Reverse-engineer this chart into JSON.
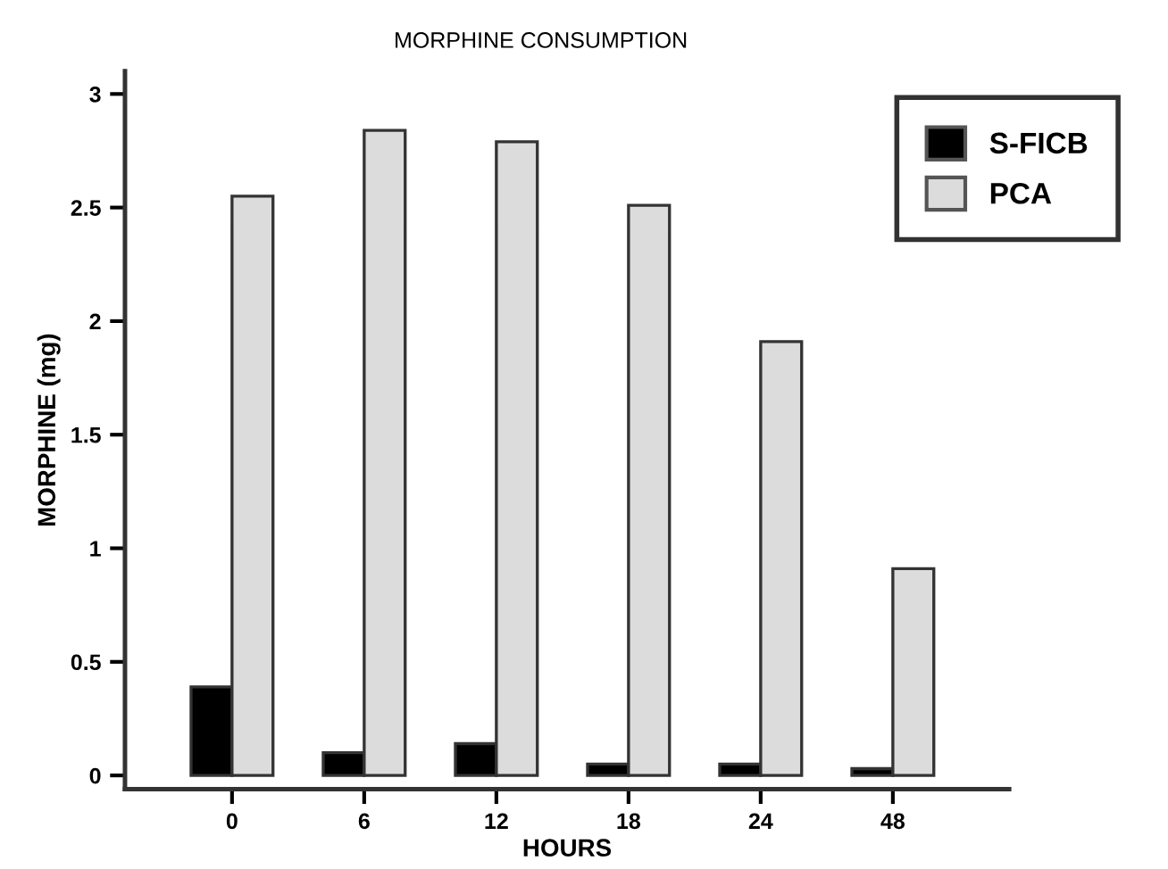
{
  "chart_data": {
    "type": "bar",
    "title": "MORPHINE CONSUMPTION",
    "xlabel": "HOURS",
    "ylabel": "MORPHINE (mg)",
    "categories": [
      "0",
      "6",
      "12",
      "18",
      "24",
      "48"
    ],
    "series": [
      {
        "name": "S-FICB",
        "color": "#000000",
        "values": [
          0.39,
          0.1,
          0.14,
          0.05,
          0.05,
          0.03
        ]
      },
      {
        "name": "PCA",
        "color": "#dcdcdc",
        "values": [
          2.55,
          2.84,
          2.79,
          2.51,
          1.91,
          0.91
        ]
      }
    ],
    "ylim": [
      -0.06,
      3.1
    ],
    "yticks": [
      0,
      0.5,
      1,
      1.5,
      2,
      2.5,
      3
    ],
    "grid": false,
    "legend": "top right"
  }
}
